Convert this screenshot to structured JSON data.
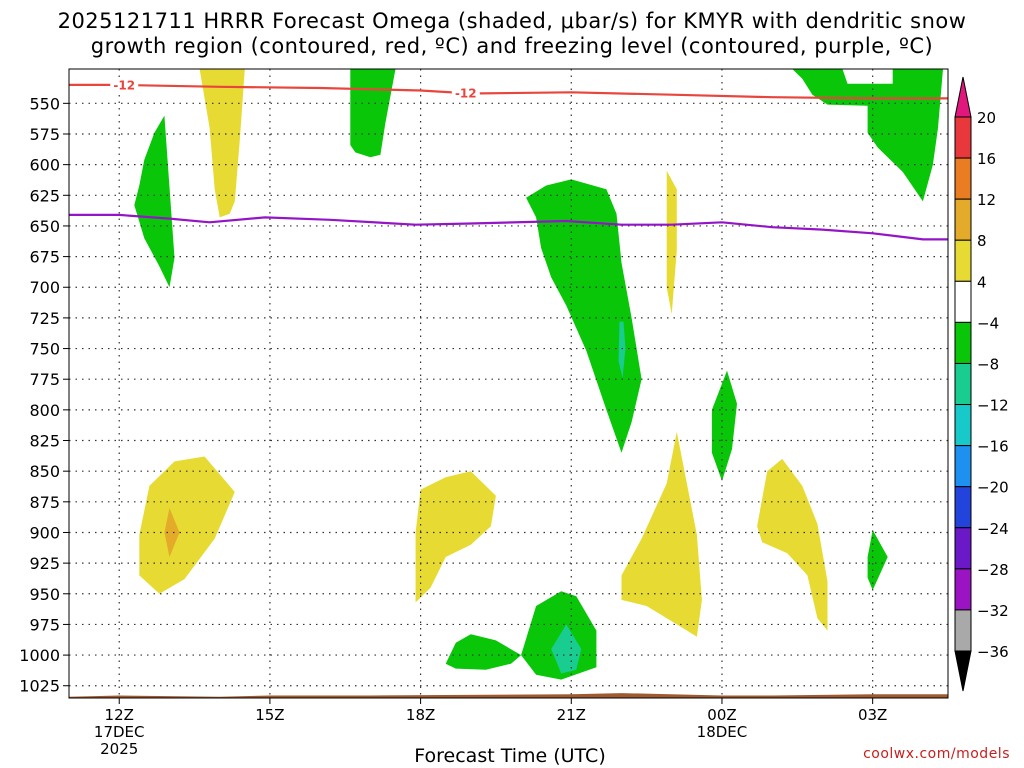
{
  "header": {
    "title_line1": "2025121711 HRRR Forecast Omega (shaded, μbar/s) for KMYR with dendritic snow",
    "title_line2": "growth region (contoured, red, ºC) and freezing level (contoured, purple, ºC)"
  },
  "footer": {
    "x_axis_title": "Forecast Time (UTC)",
    "credit": "coolwx.com/models"
  },
  "chart_data": {
    "type": "contour",
    "x_unit": "forecast hour from 2025-12-17 11Z",
    "xlim": [
      11,
      28.5
    ],
    "ylim_hPa": [
      1035,
      522
    ],
    "y_ticks": [
      "550",
      "575",
      "600",
      "625",
      "650",
      "675",
      "700",
      "725",
      "750",
      "775",
      "800",
      "825",
      "850",
      "875",
      "900",
      "925",
      "950",
      "975",
      "1000",
      "1025"
    ],
    "x_ticks": [
      {
        "hour": 12,
        "lines": [
          "12Z",
          "17DEC",
          "2025"
        ]
      },
      {
        "hour": 15,
        "lines": [
          "15Z"
        ]
      },
      {
        "hour": 18,
        "lines": [
          "18Z"
        ]
      },
      {
        "hour": 21,
        "lines": [
          "21Z"
        ]
      },
      {
        "hour": 24,
        "lines": [
          "00Z",
          "18DEC"
        ]
      },
      {
        "hour": 27,
        "lines": [
          "03Z"
        ]
      }
    ],
    "colorbar": {
      "ticks": [
        "20",
        "16",
        "12",
        "8",
        "4",
        "−4",
        "−8",
        "−12",
        "−16",
        "−20",
        "−24",
        "−28",
        "−32",
        "−36"
      ],
      "colors": [
        "#e1177d",
        "#e8383b",
        "#ea7d22",
        "#e4aa2a",
        "#e7db33",
        "#ffffff",
        "#09c609",
        "#19cc8f",
        "#18c9c9",
        "#1e90f0",
        "#2244dd",
        "#6a18c8",
        "#9b14c4",
        "#a9a9a9",
        "#000000"
      ]
    },
    "dgz_line": {
      "name": "-12 °C isotherm",
      "color": "#e8453c",
      "labels": [
        "-12",
        "-12"
      ],
      "label_hours": [
        12.1,
        18.9
      ],
      "points": [
        [
          11,
          535
        ],
        [
          12,
          535
        ],
        [
          14,
          536.5
        ],
        [
          16,
          537.5
        ],
        [
          18,
          539.5
        ],
        [
          19,
          542
        ],
        [
          21,
          541
        ],
        [
          23,
          543
        ],
        [
          25,
          545
        ],
        [
          27,
          546
        ],
        [
          28.5,
          546
        ]
      ]
    },
    "freezing_line": {
      "name": "0 °C isotherm",
      "color": "#9315c6",
      "points": [
        [
          11,
          641
        ],
        [
          12,
          641
        ],
        [
          13,
          644
        ],
        [
          13.8,
          647
        ],
        [
          14.9,
          643
        ],
        [
          16.2,
          645
        ],
        [
          17.9,
          649
        ],
        [
          19,
          648
        ],
        [
          20.9,
          646
        ],
        [
          22,
          649
        ],
        [
          23,
          649
        ],
        [
          24,
          647
        ],
        [
          25,
          651
        ],
        [
          26,
          653
        ],
        [
          27,
          656
        ],
        [
          28,
          661
        ],
        [
          28.5,
          661
        ]
      ]
    },
    "terrain": {
      "color": "#a05a30",
      "top": [
        [
          11,
          1034
        ],
        [
          12,
          1033
        ],
        [
          14,
          1034
        ],
        [
          15,
          1033
        ],
        [
          17,
          1033
        ],
        [
          21,
          1032
        ],
        [
          22,
          1031
        ],
        [
          24,
          1033
        ],
        [
          25,
          1033
        ],
        [
          27,
          1032
        ],
        [
          28.5,
          1032
        ]
      ]
    },
    "omega_regions": [
      {
        "name": "green-12z-mid",
        "color": "#09c609",
        "points": [
          [
            12.3,
            633
          ],
          [
            12.4,
            617
          ],
          [
            12.5,
            596
          ],
          [
            12.7,
            574
          ],
          [
            12.9,
            560
          ],
          [
            13.1,
            676
          ],
          [
            13.0,
            700
          ],
          [
            12.8,
            683
          ],
          [
            12.5,
            660
          ]
        ]
      },
      {
        "name": "yellow-14z-upper",
        "color": "#e7db33",
        "points": [
          [
            13.6,
            522
          ],
          [
            14.5,
            522
          ],
          [
            14.4,
            580
          ],
          [
            14.3,
            630
          ],
          [
            14.2,
            640
          ],
          [
            14.0,
            643
          ],
          [
            13.9,
            620
          ],
          [
            13.8,
            570
          ]
        ]
      },
      {
        "name": "green-17z-upper",
        "color": "#09c609",
        "points": [
          [
            16.6,
            522
          ],
          [
            17.5,
            522
          ],
          [
            17.3,
            566
          ],
          [
            17.2,
            592
          ],
          [
            17.0,
            594
          ],
          [
            16.7,
            590
          ],
          [
            16.6,
            584
          ],
          [
            16.6,
            550
          ]
        ]
      },
      {
        "name": "green-27z-upper",
        "color": "#09c609",
        "points": [
          [
            25.4,
            522
          ],
          [
            26.4,
            522
          ],
          [
            26.5,
            534
          ],
          [
            27.4,
            534
          ],
          [
            27.4,
            522
          ],
          [
            28.4,
            522
          ],
          [
            28.3,
            570
          ],
          [
            28.2,
            600
          ],
          [
            28.0,
            630
          ],
          [
            27.6,
            606
          ],
          [
            27.1,
            586
          ],
          [
            26.9,
            574
          ],
          [
            26.9,
            552
          ],
          [
            26.1,
            551
          ],
          [
            25.8,
            543
          ],
          [
            25.6,
            530
          ]
        ]
      },
      {
        "name": "green-21z-column",
        "color": "#09c609",
        "points": [
          [
            20.1,
            627
          ],
          [
            20.5,
            617
          ],
          [
            21.0,
            612
          ],
          [
            21.7,
            620
          ],
          [
            21.9,
            640
          ],
          [
            22.0,
            680
          ],
          [
            22.2,
            725
          ],
          [
            22.4,
            775
          ],
          [
            22.2,
            810
          ],
          [
            22.0,
            835
          ],
          [
            21.7,
            800
          ],
          [
            21.3,
            752
          ],
          [
            20.9,
            715
          ],
          [
            20.6,
            692
          ],
          [
            20.4,
            668
          ],
          [
            20.3,
            643
          ]
        ]
      },
      {
        "name": "teal-22z-sliver",
        "color": "#19cc8f",
        "points": [
          [
            21.96,
            728
          ],
          [
            22.04,
            728
          ],
          [
            22.08,
            750
          ],
          [
            22.02,
            774
          ],
          [
            21.94,
            760
          ]
        ]
      },
      {
        "name": "yellow-23z-upper-sliver",
        "color": "#e7db33",
        "points": [
          [
            22.9,
            605
          ],
          [
            23.1,
            620
          ],
          [
            23.1,
            670
          ],
          [
            23.0,
            722
          ],
          [
            22.9,
            700
          ],
          [
            22.9,
            640
          ]
        ]
      },
      {
        "name": "green-24z-mid",
        "color": "#09c609",
        "points": [
          [
            23.8,
            800
          ],
          [
            24.1,
            768
          ],
          [
            24.3,
            795
          ],
          [
            24.2,
            832
          ],
          [
            24.0,
            858
          ],
          [
            23.8,
            835
          ]
        ]
      },
      {
        "name": "yellow-13z-low",
        "color": "#e7db33",
        "points": [
          [
            12.4,
            902
          ],
          [
            12.6,
            862
          ],
          [
            13.1,
            842
          ],
          [
            13.7,
            838
          ],
          [
            14.3,
            867
          ],
          [
            13.9,
            905
          ],
          [
            13.3,
            938
          ],
          [
            12.8,
            950
          ],
          [
            12.4,
            935
          ]
        ]
      },
      {
        "name": "orange-13z-spot",
        "color": "#e4aa2a",
        "points": [
          [
            12.9,
            900
          ],
          [
            13.0,
            880
          ],
          [
            13.2,
            900
          ],
          [
            13.0,
            920
          ]
        ]
      },
      {
        "name": "yellow-18z-low",
        "color": "#e7db33",
        "points": [
          [
            17.9,
            900
          ],
          [
            18.0,
            865
          ],
          [
            18.5,
            855
          ],
          [
            19.0,
            850
          ],
          [
            19.5,
            870
          ],
          [
            19.4,
            895
          ],
          [
            19.0,
            910
          ],
          [
            18.5,
            920
          ],
          [
            18.2,
            945
          ],
          [
            17.9,
            957
          ]
        ]
      },
      {
        "name": "yellow-23z-low",
        "color": "#e7db33",
        "points": [
          [
            22.0,
            935
          ],
          [
            22.4,
            905
          ],
          [
            22.9,
            860
          ],
          [
            23.1,
            818
          ],
          [
            23.5,
            902
          ],
          [
            23.6,
            955
          ],
          [
            23.5,
            985
          ],
          [
            23.1,
            975
          ],
          [
            22.5,
            960
          ],
          [
            22.0,
            955
          ]
        ]
      },
      {
        "name": "yellow-25z-low",
        "color": "#e7db33",
        "points": [
          [
            24.7,
            895
          ],
          [
            24.9,
            850
          ],
          [
            25.2,
            840
          ],
          [
            25.6,
            862
          ],
          [
            25.9,
            893
          ],
          [
            26.1,
            940
          ],
          [
            26.1,
            980
          ],
          [
            25.9,
            970
          ],
          [
            25.7,
            935
          ],
          [
            25.3,
            917
          ],
          [
            24.8,
            908
          ]
        ]
      },
      {
        "name": "green-27z-low",
        "color": "#09c609",
        "points": [
          [
            26.9,
            920
          ],
          [
            27.0,
            898
          ],
          [
            27.3,
            920
          ],
          [
            27.0,
            947
          ],
          [
            26.9,
            937
          ]
        ]
      },
      {
        "name": "green-19z-low",
        "color": "#09c609",
        "points": [
          [
            18.5,
            1007
          ],
          [
            18.7,
            990
          ],
          [
            19.0,
            983
          ],
          [
            19.5,
            988
          ],
          [
            20.0,
            1000
          ],
          [
            19.8,
            1007
          ],
          [
            19.3,
            1012
          ],
          [
            18.7,
            1011
          ]
        ]
      },
      {
        "name": "green-21z-low",
        "color": "#09c609",
        "points": [
          [
            20.0,
            1000
          ],
          [
            20.3,
            960
          ],
          [
            20.8,
            948
          ],
          [
            21.1,
            952
          ],
          [
            21.5,
            980
          ],
          [
            21.5,
            1010
          ],
          [
            20.8,
            1020
          ],
          [
            20.3,
            1016
          ]
        ]
      },
      {
        "name": "teal-21z-low",
        "color": "#19cc8f",
        "points": [
          [
            20.6,
            995
          ],
          [
            20.9,
            975
          ],
          [
            21.2,
            995
          ],
          [
            21.1,
            1012
          ],
          [
            20.8,
            1015
          ]
        ]
      }
    ]
  }
}
